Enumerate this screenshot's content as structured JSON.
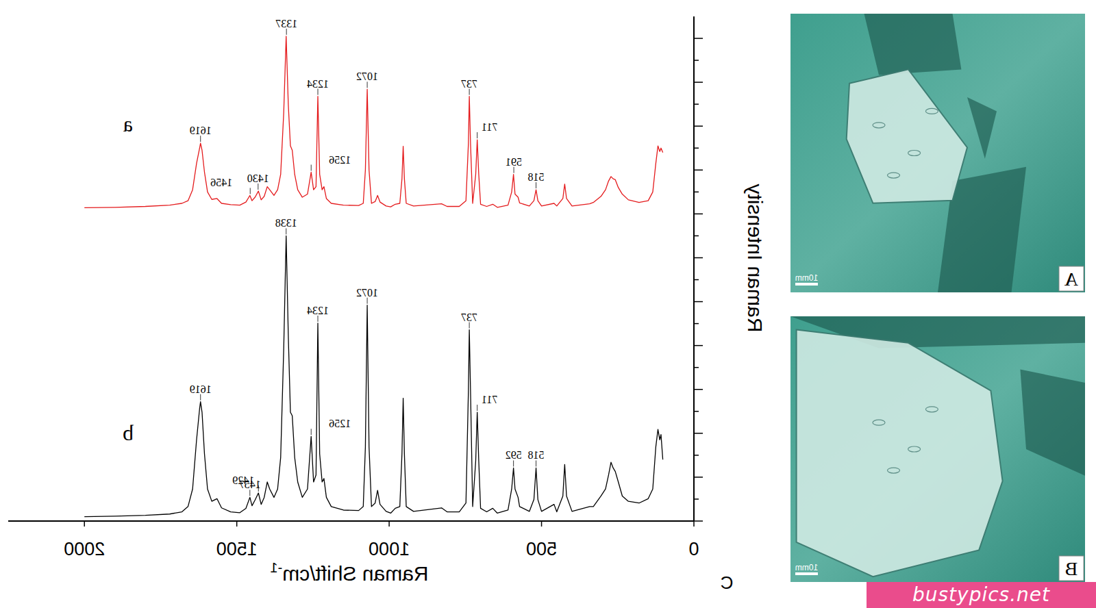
{
  "chart_data": {
    "type": "line",
    "x_label": "Raman Shift/cm-1",
    "y_label": "Raman Intensity",
    "panel_label": "C",
    "xlim": [
      2250,
      0
    ],
    "xticks": [
      0,
      500,
      1000,
      1500,
      2000
    ],
    "ylim": [
      0,
      11.5
    ],
    "yticks": [
      0,
      0.5,
      1,
      1.5,
      2,
      2.5,
      3,
      3.5,
      4,
      4.5,
      5,
      5.5,
      6,
      6.5,
      7,
      7.5,
      8,
      8.5,
      9,
      9.5,
      10,
      10.5,
      11
    ],
    "tick_labels": "x",
    "grid": false,
    "x": [
      2000,
      1900,
      1800,
      1720,
      1680,
      1660,
      1645,
      1632,
      1622,
      1619,
      1614,
      1606,
      1596,
      1582,
      1565,
      1550,
      1520,
      1490,
      1470,
      1457,
      1450,
      1440,
      1429,
      1420,
      1410,
      1400,
      1392,
      1378,
      1366,
      1356,
      1346,
      1338,
      1331,
      1324,
      1318,
      1310,
      1300,
      1285,
      1268,
      1256,
      1248,
      1240,
      1234,
      1228,
      1220,
      1214,
      1206,
      1190,
      1150,
      1100,
      1085,
      1078,
      1072,
      1066,
      1058,
      1046,
      1038,
      1030,
      1010,
      995,
      980,
      965,
      958,
      954,
      950,
      944,
      920,
      828,
      810,
      770,
      748,
      740,
      737,
      733,
      726,
      716,
      711,
      706,
      700,
      680,
      660,
      645,
      610,
      598,
      592,
      587,
      577,
      572,
      540,
      525,
      518,
      512,
      500,
      459,
      450,
      430,
      424,
      418,
      400,
      342,
      330,
      305,
      290,
      280,
      272,
      265,
      258,
      248,
      235,
      215,
      180,
      150,
      135,
      125,
      118,
      112,
      108,
      102
    ],
    "series": [
      {
        "name": "a",
        "color": "#e41a1c",
        "values": [
          7.14,
          7.15,
          7.17,
          7.2,
          7.24,
          7.3,
          7.55,
          8.15,
          8.5,
          8.61,
          8.45,
          7.95,
          7.5,
          7.33,
          7.35,
          7.24,
          7.21,
          7.2,
          7.27,
          7.42,
          7.3,
          7.38,
          7.52,
          7.32,
          7.4,
          7.62,
          7.55,
          7.42,
          7.55,
          7.9,
          9.3,
          11.05,
          9.5,
          8.55,
          8.45,
          7.9,
          7.55,
          7.38,
          7.45,
          7.95,
          7.55,
          7.62,
          9.68,
          7.9,
          7.55,
          7.62,
          7.35,
          7.24,
          7.2,
          7.19,
          7.24,
          8.0,
          9.84,
          8.0,
          7.24,
          7.28,
          7.42,
          7.27,
          7.18,
          7.16,
          7.22,
          7.24,
          7.8,
          8.54,
          7.8,
          7.24,
          7.18,
          7.23,
          7.17,
          7.17,
          7.3,
          8.6,
          9.68,
          8.6,
          7.24,
          7.9,
          8.69,
          7.9,
          7.22,
          7.17,
          7.22,
          7.15,
          7.2,
          7.5,
          7.9,
          7.45,
          7.38,
          7.25,
          7.18,
          7.3,
          7.55,
          7.3,
          7.18,
          7.24,
          7.18,
          7.35,
          7.68,
          7.35,
          7.18,
          7.23,
          7.26,
          7.4,
          7.55,
          7.75,
          7.85,
          7.8,
          7.78,
          7.6,
          7.45,
          7.32,
          7.26,
          7.3,
          7.5,
          8.15,
          8.55,
          8.42,
          8.5,
          8.4
        ],
        "peak_labels": [
          1619,
          1456,
          1430,
          1337,
          1256,
          1234,
          1072,
          737,
          711,
          591,
          518
        ]
      },
      {
        "name": "b",
        "color": "#000000",
        "values": [
          0.1,
          0.11,
          0.13,
          0.16,
          0.21,
          0.33,
          0.73,
          1.85,
          2.56,
          2.72,
          2.48,
          1.53,
          0.73,
          0.45,
          0.51,
          0.3,
          0.21,
          0.19,
          0.29,
          0.54,
          0.35,
          0.48,
          0.64,
          0.38,
          0.54,
          0.89,
          0.73,
          0.54,
          0.73,
          1.45,
          3.92,
          6.5,
          4.24,
          2.48,
          2.4,
          1.45,
          0.89,
          0.54,
          0.73,
          1.93,
          0.89,
          1.05,
          4.51,
          1.53,
          0.89,
          0.97,
          0.54,
          0.33,
          0.25,
          0.24,
          0.33,
          1.69,
          4.92,
          1.69,
          0.33,
          0.41,
          0.7,
          0.38,
          0.22,
          0.18,
          0.29,
          0.33,
          1.53,
          2.8,
          1.53,
          0.33,
          0.22,
          0.3,
          0.21,
          0.21,
          0.41,
          2.96,
          4.36,
          2.96,
          0.33,
          1.37,
          2.48,
          1.37,
          0.29,
          0.21,
          0.29,
          0.18,
          0.25,
          0.73,
          1.21,
          0.73,
          0.54,
          0.33,
          0.22,
          0.49,
          1.21,
          0.49,
          0.22,
          0.38,
          0.21,
          0.57,
          1.29,
          0.57,
          0.22,
          0.33,
          0.33,
          0.57,
          0.73,
          1.05,
          1.34,
          1.21,
          1.13,
          0.89,
          0.57,
          0.45,
          0.41,
          0.51,
          0.73,
          1.69,
          2.09,
          1.85,
          1.97,
          1.4
        ],
        "peak_labels": [
          1619,
          1457,
          1429,
          1338,
          1256,
          1234,
          1072,
          737,
          711,
          592,
          518
        ]
      }
    ]
  },
  "images": [
    {
      "label": "A",
      "scale_bar": "10mm"
    },
    {
      "label": "B",
      "scale_bar": "10mm"
    }
  ],
  "watermark": "bustypics.net"
}
